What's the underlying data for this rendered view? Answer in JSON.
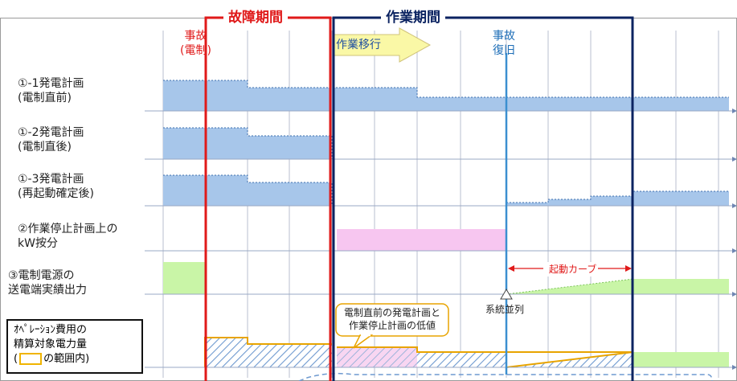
{
  "periods": {
    "failure": "故障期間",
    "work": "作業期間"
  },
  "annotations": {
    "accident_control": "事故\n(電制)",
    "work_transition": "作業移行",
    "accident_recovery": "事故\n復旧",
    "startup_curve": "起動カーブ",
    "grid_parallel": "系統並列",
    "callout": "電制直前の発電計画と\n作業停止計画の低値"
  },
  "rows": [
    {
      "label": "①-1発電計画\n(電制直前)"
    },
    {
      "label": "①-2発電計画\n(電制直後)"
    },
    {
      "label": "①-3発電計画\n(再起動確定後)"
    },
    {
      "label": "②作業停止計画上の\nkW按分"
    },
    {
      "label": "③電制電源の\n送電端実績出力"
    }
  ],
  "note": {
    "line1": "ｵﾍﾟﾚｰｼｮﾝ費用の",
    "line2": "精算対象電力量",
    "line3_pre": "(",
    "line3_post": "の範囲内)"
  },
  "colors": {
    "blue_fill": "#a7c6ea",
    "pink_fill": "#f7c6f0",
    "green_fill": "#c9f5a7",
    "red_frame": "#e01a1a",
    "navy_frame": "#0b2361",
    "recovery_line": "#3b8fd0",
    "orange": "#e8a400"
  }
}
